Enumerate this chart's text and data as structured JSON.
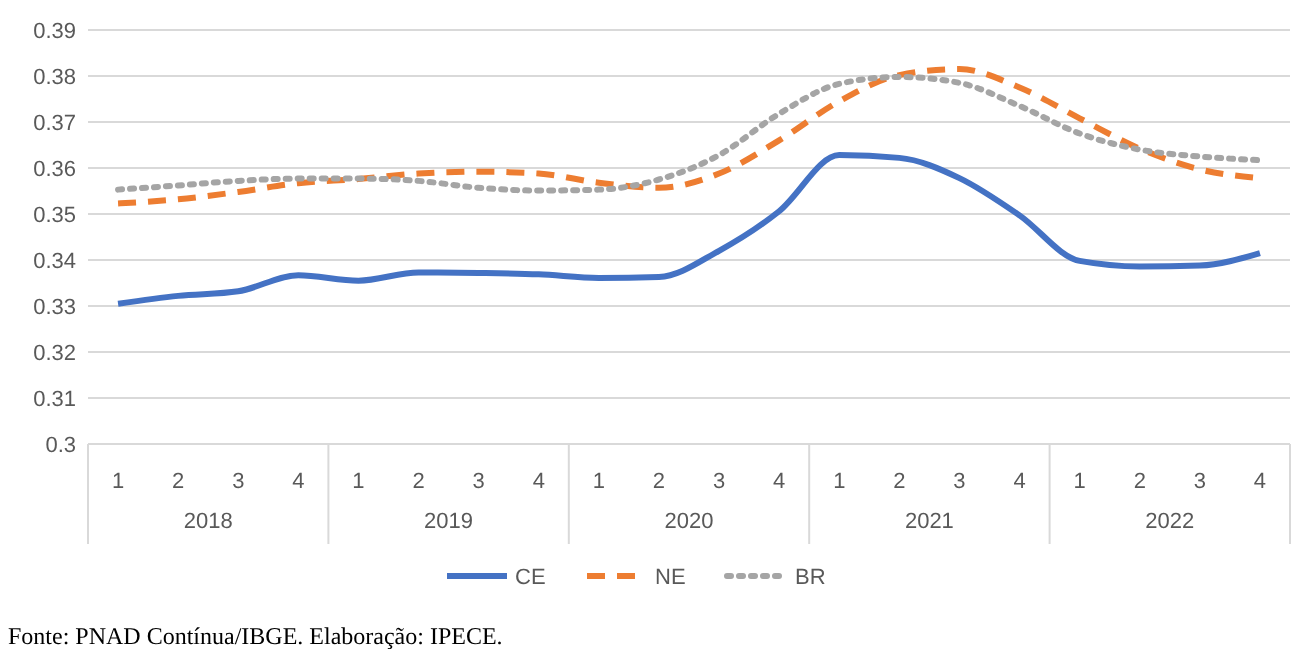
{
  "chart_data": {
    "type": "line",
    "categories": [
      "1",
      "2",
      "3",
      "4",
      "1",
      "2",
      "3",
      "4",
      "1",
      "2",
      "3",
      "4",
      "1",
      "2",
      "3",
      "4",
      "1",
      "2",
      "3",
      "4"
    ],
    "series": [
      {
        "name": "CE",
        "color": "#4472c4",
        "line_style": "solid",
        "values": [
          0.3305,
          0.3322,
          0.3332,
          0.3367,
          0.3355,
          0.3373,
          0.3372,
          0.3369,
          0.3361,
          0.3363,
          0.342,
          0.3506,
          0.3628,
          0.3622,
          0.3578,
          0.3497,
          0.3398,
          0.3386,
          0.3388,
          0.3415
        ]
      },
      {
        "name": "NE",
        "color": "#ed7d31",
        "line_style": "dashed",
        "values": [
          0.3523,
          0.3532,
          0.3548,
          0.3567,
          0.3576,
          0.3588,
          0.3592,
          0.3588,
          0.3568,
          0.3557,
          0.3588,
          0.366,
          0.3745,
          0.3802,
          0.3815,
          0.3775,
          0.3708,
          0.3642,
          0.3597,
          0.3578
        ]
      },
      {
        "name": "BR",
        "color": "#a5a5a5",
        "line_style": "dotted",
        "values": [
          0.3553,
          0.3562,
          0.3572,
          0.3577,
          0.3577,
          0.3572,
          0.3557,
          0.3551,
          0.3553,
          0.3575,
          0.3628,
          0.3718,
          0.3783,
          0.3798,
          0.3785,
          0.3735,
          0.3675,
          0.364,
          0.3625,
          0.3617
        ]
      }
    ],
    "ylim": [
      0.3,
      0.39
    ],
    "yticks": [
      0.3,
      0.31,
      0.32,
      0.33,
      0.34,
      0.35,
      0.36,
      0.37,
      0.38,
      0.39
    ],
    "grid": "y",
    "legend": "bottom",
    "marker": "none",
    "annotations": [
      "2018",
      "2019",
      "2020",
      "2021",
      "2022",
      "Fonte: PNAD Contínua/IBGE. Elaboração: IPECE."
    ]
  }
}
